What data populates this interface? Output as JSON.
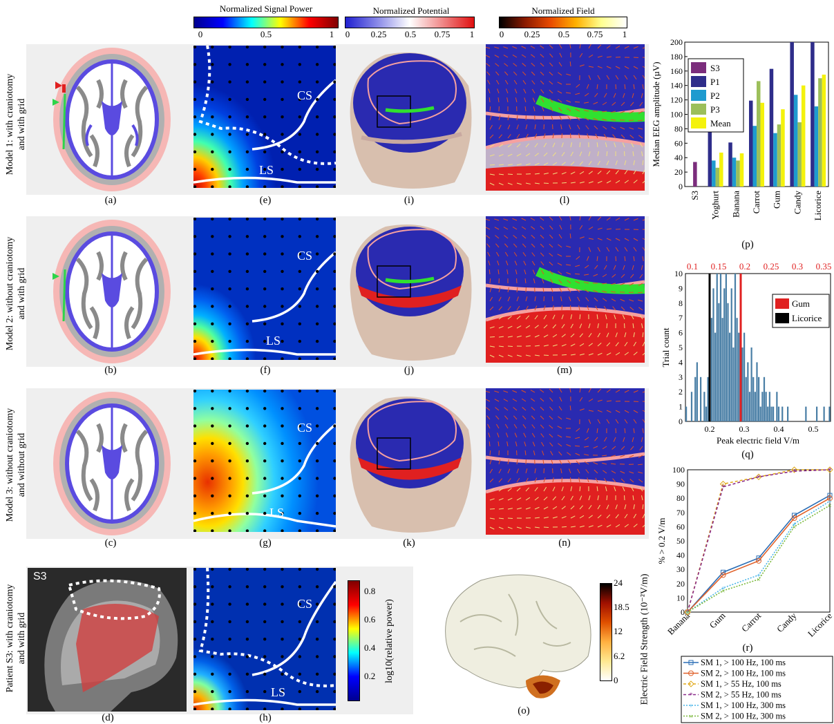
{
  "colorbars": {
    "signal": {
      "title": "Normalized Signal Power",
      "ticks": [
        "0",
        "0.5",
        "1"
      ]
    },
    "potential": {
      "title": "Normalized Potential",
      "ticks": [
        "0",
        "0.25",
        "0.5",
        "0.75",
        "1"
      ]
    },
    "field": {
      "title": "Normalized Field",
      "ticks": [
        "0",
        "0.25",
        "0.5",
        "0.75",
        "1"
      ]
    }
  },
  "row_labels": {
    "model1": [
      "Model 1: with craniotomy",
      "and with grid"
    ],
    "model2": [
      "Model 2: without craniotomy",
      "and with grid"
    ],
    "model3": [
      "Model 3: without craniotomy",
      "and without grid"
    ],
    "patient": [
      "Patient S3: with craniotomy",
      "and with grid"
    ]
  },
  "panel_letters": {
    "a": "(a)",
    "b": "(b)",
    "c": "(c)",
    "d": "(d)",
    "e": "(e)",
    "f": "(f)",
    "g": "(g)",
    "h": "(h)",
    "i": "(i)",
    "j": "(j)",
    "k": "(k)",
    "l": "(l)",
    "m": "(m)",
    "n": "(n)",
    "o": "(o)",
    "p": "(p)",
    "q": "(q)",
    "r": "(r)"
  },
  "grid_labels": {
    "cs": "CS",
    "ls": "LS"
  },
  "patient_tag": "S3",
  "patient_colorbar": {
    "label": "log10(relative power)",
    "ticks": [
      "0.8",
      "0.6",
      "0.4",
      "0.2"
    ]
  },
  "brain_colorbar": {
    "label": "Electric Field Strength (10⁻²V/m)",
    "ticks": [
      "24",
      "18.5",
      "12",
      "6.2",
      "0"
    ]
  },
  "colors": {
    "s3": "#7b2d7c",
    "p1": "#2e2d8a",
    "p2": "#1e9bcf",
    "p3": "#9cbf5a",
    "mean": "#f4f20c"
  },
  "chart_data": [
    {
      "type": "bar",
      "title": "",
      "xlabel": "",
      "ylabel": "Median EEG amplitude (µV)",
      "ylim": [
        0,
        200
      ],
      "yticks": [
        0,
        20,
        40,
        60,
        80,
        100,
        120,
        140,
        160,
        180,
        200
      ],
      "categories": [
        "S3",
        "Yoghurt",
        "Banana",
        "Carrot",
        "Gum",
        "Candy",
        "Licorice"
      ],
      "series": [
        {
          "name": "S3",
          "values": [
            34,
            null,
            null,
            null,
            null,
            null,
            null
          ]
        },
        {
          "name": "P1",
          "values": [
            null,
            79,
            61,
            119,
            163,
            203,
            205
          ]
        },
        {
          "name": "P2",
          "values": [
            null,
            36,
            40,
            84,
            74,
            127,
            111
          ]
        },
        {
          "name": "P3",
          "values": [
            null,
            26,
            36,
            146,
            86,
            89,
            150
          ]
        },
        {
          "name": "Mean",
          "values": [
            null,
            47,
            46,
            116,
            107,
            140,
            155
          ]
        }
      ],
      "legend": "top-left"
    },
    {
      "type": "bar",
      "title": "",
      "xlabel": "Peak electric field V/m",
      "ylabel": "Trial count",
      "xlim": [
        0.13,
        0.55
      ],
      "ylim": [
        0,
        10
      ],
      "xticks": [
        "0.2",
        "0.3",
        "0.4",
        "0.5"
      ],
      "yticks": [
        "0",
        "1",
        "2",
        "3",
        "4",
        "5",
        "6",
        "7",
        "8",
        "9",
        "10"
      ],
      "top_ticks": [
        "0.1",
        "0.15",
        "0.2",
        "0.25",
        "0.3",
        "0.35"
      ],
      "histogram_counts": [
        1,
        0,
        0,
        2,
        0,
        3,
        4,
        0,
        3,
        0,
        2,
        1,
        3,
        5,
        7,
        9,
        6,
        10,
        8,
        10,
        7,
        9,
        10,
        8,
        6,
        9,
        5,
        10,
        7,
        6,
        4,
        5,
        6,
        3,
        4,
        2,
        5,
        3,
        2,
        4,
        3,
        1,
        2,
        3,
        2,
        1,
        2,
        1,
        1,
        0,
        2,
        1,
        0,
        1,
        0,
        0,
        1,
        0,
        0,
        0,
        0,
        0,
        0,
        0,
        0,
        0,
        1,
        0,
        0,
        0,
        0,
        0,
        1,
        0,
        0,
        0,
        1,
        0,
        0,
        1
      ],
      "markers": [
        {
          "name": "Gum",
          "x": 0.29,
          "color": "#e02020"
        },
        {
          "name": "Licorice",
          "x": 0.2,
          "color": "#000000"
        }
      ],
      "legend": "top-right"
    },
    {
      "type": "line",
      "title": "",
      "xlabel": "",
      "ylabel": "% > 0.2 V/m",
      "ylim": [
        0,
        100
      ],
      "yticks": [
        "0",
        "10",
        "20",
        "30",
        "40",
        "50",
        "60",
        "70",
        "80",
        "90",
        "100"
      ],
      "categories": [
        "Banana",
        "Gum",
        "Carrot",
        "Candy",
        "Licorice"
      ],
      "series": [
        {
          "name": "SM 1, > 100 Hz, 100 ms",
          "values": [
            0,
            28,
            38,
            68,
            82
          ],
          "color": "#2a6db5",
          "marker": "s",
          "dash": ""
        },
        {
          "name": "SM 2, > 100 Hz, 100 ms",
          "values": [
            0,
            26,
            36,
            66,
            80
          ],
          "color": "#e0612a",
          "marker": "o",
          "dash": ""
        },
        {
          "name": "SM 1, >  55 Hz, 100 ms",
          "values": [
            0,
            90,
            95,
            100,
            100
          ],
          "color": "#e0a818",
          "marker": "d",
          "dash": "4,3"
        },
        {
          "name": "SM 2, >  55 Hz, 100 ms",
          "values": [
            0,
            88,
            95,
            99,
            100
          ],
          "color": "#8a2a8a",
          "marker": "*",
          "dash": "4,3"
        },
        {
          "name": "SM 1, > 100 Hz, 300 ms",
          "values": [
            0,
            17,
            26,
            62,
            78
          ],
          "color": "#4ab5e8",
          "marker": "+",
          "dash": "2,2"
        },
        {
          "name": "SM 2, > 100 Hz, 300 ms",
          "values": [
            0,
            15,
            23,
            60,
            75
          ],
          "color": "#7ab83a",
          "marker": "x",
          "dash": "2,2"
        }
      ],
      "legend": "bottom"
    }
  ]
}
